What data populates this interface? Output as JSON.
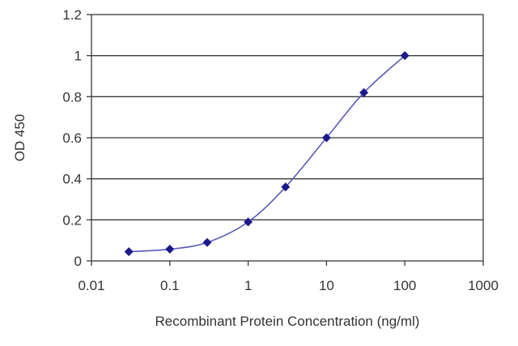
{
  "chart_data": {
    "type": "line",
    "title": "",
    "xlabel": "Recombinant Protein Concentration (ng/ml)",
    "ylabel": "OD 450",
    "x_scale": "log",
    "xlim": [
      0.01,
      1000
    ],
    "ylim": [
      0,
      1.2
    ],
    "x_ticks": [
      0.01,
      0.1,
      1,
      10,
      100,
      1000
    ],
    "x_tick_labels": [
      "0.01",
      "0.1",
      "1",
      "10",
      "100",
      "1000"
    ],
    "y_ticks": [
      0,
      0.2,
      0.4,
      0.6,
      0.8,
      1,
      1.2
    ],
    "y_tick_labels": [
      "0",
      "0.2",
      "0.4",
      "0.6",
      "0.8",
      "1",
      "1.2"
    ],
    "grid": "horizontal",
    "legend": "none",
    "colors": {
      "line": "#5a5ab8",
      "marker": "#1a1a8c",
      "axis": "#3a3a3a"
    },
    "series": [
      {
        "x": [
          0.03,
          0.1,
          0.3,
          1,
          3,
          10,
          30,
          100
        ],
        "y": [
          0.045,
          0.057,
          0.09,
          0.19,
          0.36,
          0.6,
          0.82,
          1.0
        ]
      }
    ]
  }
}
